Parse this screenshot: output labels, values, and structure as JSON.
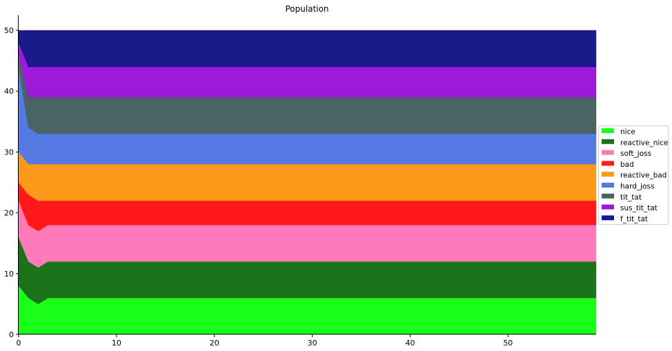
{
  "chart_data": {
    "type": "area",
    "stacked": true,
    "title": "Population",
    "xlabel": "",
    "ylabel": "",
    "xlim": [
      0,
      59
    ],
    "ylim": [
      0,
      52.5
    ],
    "x_ticks": [
      0,
      10,
      20,
      30,
      40,
      50
    ],
    "y_ticks": [
      0,
      10,
      20,
      30,
      40,
      50
    ],
    "grid": false,
    "legend": {
      "placement": "right",
      "entries": [
        "nice",
        "reactive_nice",
        "soft_joss",
        "bad",
        "reactive_bad",
        "hard_joss",
        "tit_tat",
        "sus_tit_tat",
        "f_tit_tat"
      ]
    },
    "x": [
      0,
      1,
      2,
      3,
      59
    ],
    "series": [
      {
        "name": "nice",
        "color": "#19ff19",
        "values": [
          8,
          6,
          5,
          6,
          6
        ]
      },
      {
        "name": "reactive_nice",
        "color": "#1a731a",
        "values": [
          8,
          6,
          6,
          6,
          6
        ]
      },
      {
        "name": "soft_joss",
        "color": "#ff7ab8",
        "values": [
          6,
          6,
          6,
          6,
          6
        ]
      },
      {
        "name": "bad",
        "color": "#ff1919",
        "values": [
          3,
          5,
          5,
          4,
          4
        ]
      },
      {
        "name": "reactive_bad",
        "color": "#ff991a",
        "values": [
          5,
          5,
          6,
          6,
          6
        ]
      },
      {
        "name": "hard_joss",
        "color": "#547ae3",
        "values": [
          14,
          6,
          5,
          5,
          5
        ]
      },
      {
        "name": "tit_tat",
        "color": "#4a6363",
        "values": [
          2,
          5,
          6,
          6,
          6
        ]
      },
      {
        "name": "sus_tit_tat",
        "color": "#9e19d9",
        "values": [
          2,
          5,
          5,
          5,
          5
        ]
      },
      {
        "name": "f_tit_tat",
        "color": "#1a1a8c",
        "values": [
          2,
          6,
          6,
          6,
          6
        ]
      }
    ]
  }
}
